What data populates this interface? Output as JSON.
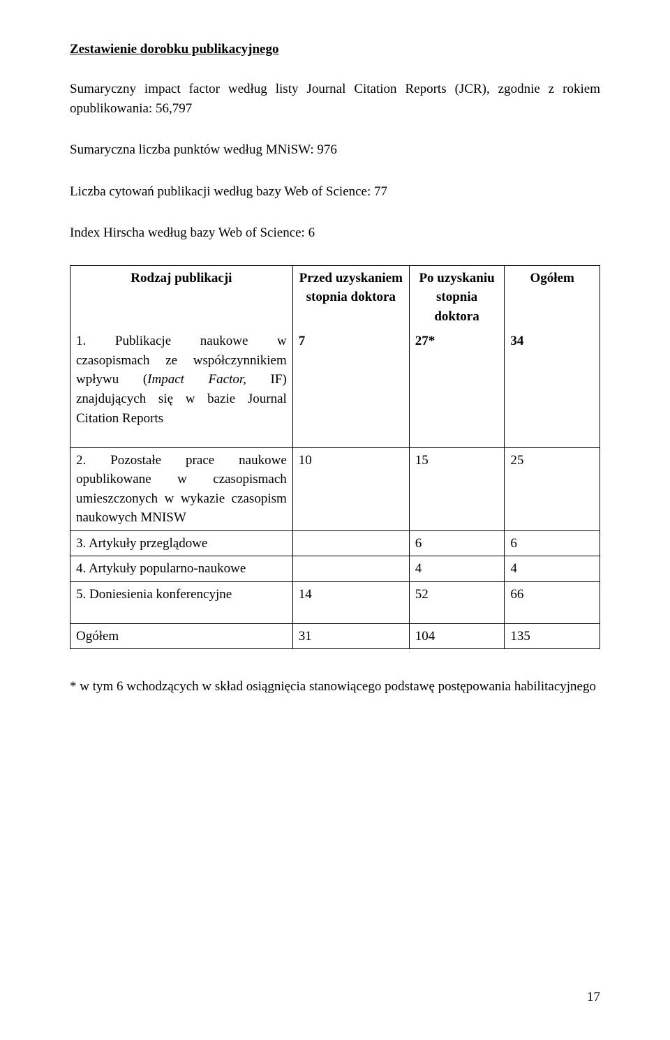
{
  "heading": "Zestawienie dorobku publikacyjnego",
  "para1": "Sumaryczny impact factor według listy Journal Citation Reports (JCR), zgodnie z rokiem opublikowania: 56,797",
  "para2": "Sumaryczna liczba punktów według MNiSW: 976",
  "para3": "Liczba cytowań publikacji według bazy Web of Science: 77",
  "para4": "Index Hirscha według bazy Web of Science: 6",
  "table": {
    "headers": {
      "col1": "Rodzaj publikacji",
      "col2": "Przed uzyskaniem stopnia doktora",
      "col3": "Po uzyskaniu stopnia doktora",
      "col4": "Ogółem"
    },
    "rows": [
      {
        "label": "1. Publikacje naukowe w czasopismach ze współczynnikiem wpływu (Impact Factor, IF) znajdujących się w bazie Journal Citation Reports",
        "before": "7",
        "after": "27*",
        "total": "34",
        "bold": true,
        "italicPart": "(Impact Factor,"
      },
      {
        "label": "2. Pozostałe prace naukowe opublikowane w czasopismach umieszczonych w wykazie czasopism naukowych MNISW",
        "before": "10",
        "after": "15",
        "total": "25",
        "bold": false
      },
      {
        "label": "3. Artykuły przeglądowe",
        "before": "",
        "after": "6",
        "total": "6",
        "bold": false
      },
      {
        "label": "4. Artykuły popularno-naukowe",
        "before": "",
        "after": "4",
        "total": "4",
        "bold": false
      },
      {
        "label": "5. Doniesienia konferencyjne",
        "before": "14",
        "after": "52",
        "total": "66",
        "bold": false
      }
    ],
    "totalRow": {
      "label": "Ogółem",
      "before": "31",
      "after": "104",
      "total": "135"
    }
  },
  "footnote": "* w tym 6 wchodzących w skład osiągnięcia stanowiącego podstawę postępowania habilitacyjnego",
  "pageNumber": "17"
}
